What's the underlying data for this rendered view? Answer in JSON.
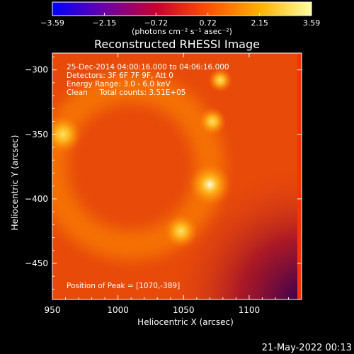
{
  "chart_data": {
    "type": "heatmap",
    "title": "Reconstructed RHESSI Image",
    "xlabel": "Heliocentric X (arcsec)",
    "ylabel": "Heliocentric Y (arcsec)",
    "xlim": [
      950,
      1140
    ],
    "ylim": [
      -478,
      -287
    ],
    "x_ticks": [
      950,
      1000,
      1050,
      1100
    ],
    "x_tick_labels": [
      "950",
      "1000",
      "1050",
      "1100"
    ],
    "y_ticks": [
      -300,
      -350,
      -400,
      -450
    ],
    "y_tick_labels": [
      "−300",
      "−350",
      "−400",
      "−450"
    ],
    "colorbar": {
      "ticks": [
        -3.59,
        -2.15,
        -0.72,
        0.72,
        2.15,
        3.59
      ],
      "tick_labels": [
        "−3.59",
        "−2.15",
        "−0.72",
        "0.72",
        "2.15",
        "3.59"
      ],
      "label": "(photons cm⁻² s⁻¹ asec⁻²)",
      "range": [
        -3.59,
        3.59
      ],
      "colormap": [
        "#0000ff",
        "#6a00a8",
        "#c80030",
        "#ff5000",
        "#ffb000",
        "#ffffa0"
      ]
    },
    "annotations": [
      "25-Dec-2014 04:00:16.000 to 04:06:16.000",
      "Detectors: 3F 6F 7F 9F, Att 0",
      "Energy Range: 3.0 - 6.0 keV",
      "Clean     Total counts: 3.51E+05"
    ],
    "peak_label": "Position of Peak = [1070,-389]",
    "sources": [
      {
        "x": 1070,
        "y": -389,
        "value": 3.59
      },
      {
        "x": 958,
        "y": -350,
        "value": 3.2
      },
      {
        "x": 1048,
        "y": -425,
        "value": 2.9
      },
      {
        "x": 1072,
        "y": -340,
        "value": 2.4
      },
      {
        "x": 1078,
        "y": -308,
        "value": 2.1
      }
    ],
    "ring": {
      "center": [
        1010,
        -375
      ],
      "radius": 60,
      "value": 1.6
    }
  },
  "footer": {
    "date": "21-May-2022 00:13"
  }
}
